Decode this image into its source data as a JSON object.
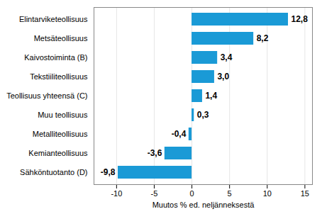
{
  "chart_data": {
    "type": "bar",
    "orientation": "horizontal",
    "x_label": "Muutos % ed. neljänneksestä",
    "categories": [
      "Elintarviketeollisuus",
      "Metsäteollisuus",
      "Kaivostoiminta (B)",
      "Tekstiiliteollisuus",
      "Teollisuus yhteensä (C)",
      "Muu teollisuus",
      "Metalliteollisuus",
      "Kemianteollisuus",
      "Sähköntuotanto (D)"
    ],
    "values": [
      12.8,
      8.2,
      3.4,
      3.0,
      1.4,
      0.3,
      -0.4,
      -3.6,
      -9.8
    ],
    "value_labels": [
      "12,8",
      "8,2",
      "3,4",
      "3,0",
      "1,4",
      "0,3",
      "-0,4",
      "-3,6",
      "-9,8"
    ],
    "data_labels": true,
    "color": "#1a9ad6",
    "xlim": [
      -13,
      16
    ],
    "xticks": [
      -10,
      -5,
      0,
      5,
      10,
      15
    ],
    "grid": true
  }
}
